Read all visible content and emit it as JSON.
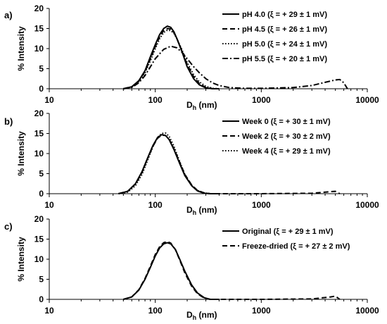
{
  "chart_data": [
    {
      "type": "line",
      "panel_label": "a)",
      "ylabel": "% Intensity",
      "xlabel_main": "D",
      "xlabel_sub": "h",
      "xlabel_unit": " (nm)",
      "x_scale": "log",
      "xlim": [
        10,
        10000
      ],
      "ylim": [
        0,
        20
      ],
      "xticks": [
        10,
        100,
        1000,
        10000
      ],
      "xtick_labels": [
        "10",
        "100",
        "1000",
        "10000"
      ],
      "yticks": [
        0,
        5,
        10,
        15,
        20
      ],
      "ytick_labels": [
        "0",
        "5",
        "10",
        "15",
        "20"
      ],
      "grid": false,
      "legend_position": "top-right",
      "series": [
        {
          "name": "pH 4.0 (ξ = + 29 ± 1 mV)",
          "dash": "solid",
          "x": [
            50,
            60,
            70,
            80,
            90,
            100,
            110,
            120,
            130,
            140,
            150,
            160,
            180,
            200,
            230,
            260,
            300,
            350,
            400
          ],
          "y": [
            0,
            0.5,
            2,
            4.5,
            8,
            11,
            13.5,
            15,
            15.6,
            15.3,
            14.2,
            12.5,
            9,
            5.5,
            2.5,
            1,
            0.2,
            0,
            0
          ]
        },
        {
          "name": "pH 4.5 (ξ = + 26 ± 1 mV)",
          "dash": "dash",
          "x": [
            50,
            60,
            70,
            80,
            90,
            100,
            110,
            120,
            130,
            140,
            150,
            160,
            180,
            200,
            230,
            260,
            300,
            350,
            400
          ],
          "y": [
            0,
            0.5,
            2,
            4.3,
            7.5,
            10.5,
            13,
            14.5,
            15,
            14.9,
            14,
            12.5,
            9.2,
            6,
            3,
            1.3,
            0.3,
            0,
            0
          ]
        },
        {
          "name": "pH 5.0 (ξ = + 24 ± 1 mV)",
          "dash": "dot",
          "x": [
            50,
            60,
            70,
            80,
            90,
            100,
            110,
            120,
            130,
            140,
            150,
            160,
            180,
            200,
            230,
            260,
            300,
            350,
            400
          ],
          "y": [
            0,
            0.4,
            1.8,
            4,
            7,
            10,
            12.5,
            14,
            14.6,
            14.5,
            13.8,
            12.5,
            9.5,
            6.5,
            3.5,
            1.7,
            0.6,
            0.1,
            0
          ]
        },
        {
          "name": "pH 5.5 (ξ = + 20 ± 1 mV)",
          "dash": "dashdot",
          "x": [
            50,
            60,
            70,
            80,
            90,
            100,
            120,
            140,
            160,
            180,
            200,
            230,
            260,
            300,
            350,
            400,
            500,
            700,
            1000,
            2000,
            3000,
            4000,
            5000,
            5500,
            6000,
            6500
          ],
          "y": [
            0,
            0.3,
            1.5,
            3.3,
            5.5,
            7.5,
            9.8,
            10.6,
            10.2,
            9,
            7.5,
            5.5,
            4,
            2.5,
            1.4,
            0.8,
            0.3,
            0.1,
            0.1,
            0.3,
            0.8,
            1.6,
            2.2,
            2.3,
            1.5,
            0
          ]
        }
      ]
    },
    {
      "type": "line",
      "panel_label": "b)",
      "ylabel": "% Intensity",
      "xlabel_main": "D",
      "xlabel_sub": "h",
      "xlabel_unit": " (nm)",
      "x_scale": "log",
      "xlim": [
        10,
        10000
      ],
      "ylim": [
        0,
        20
      ],
      "xticks": [
        10,
        100,
        1000,
        10000
      ],
      "xtick_labels": [
        "10",
        "100",
        "1000",
        "10000"
      ],
      "yticks": [
        0,
        5,
        10,
        15,
        20
      ],
      "ytick_labels": [
        "0",
        "5",
        "10",
        "15",
        "20"
      ],
      "grid": false,
      "legend_position": "top-right",
      "series": [
        {
          "name": "Week 0 (ξ = + 30 ± 1 mV)",
          "dash": "solid",
          "x": [
            45,
            55,
            65,
            75,
            85,
            95,
            105,
            115,
            125,
            135,
            150,
            170,
            190,
            220,
            250,
            290,
            330,
            400
          ],
          "y": [
            0,
            0.6,
            2.5,
            5.5,
            9,
            12,
            14,
            14.7,
            14.5,
            13.5,
            11,
            7.5,
            4.5,
            2,
            0.7,
            0.1,
            0,
            0
          ]
        },
        {
          "name": "Week 2 (ξ = + 30 ± 2 mV)",
          "dash": "dash",
          "x": [
            45,
            55,
            65,
            75,
            85,
            95,
            105,
            115,
            125,
            135,
            150,
            170,
            190,
            220,
            250,
            290,
            330,
            400,
            1000,
            3000,
            4500,
            5000,
            5500
          ],
          "y": [
            0,
            0.6,
            2.4,
            5.3,
            8.8,
            11.8,
            13.8,
            14.6,
            14.5,
            13.6,
            11.2,
            7.8,
            4.8,
            2.2,
            0.8,
            0.2,
            0,
            0,
            0,
            0.1,
            0.5,
            0.6,
            0
          ]
        },
        {
          "name": "Week 4 (ξ = + 29 ± 1 mV)",
          "dash": "dot",
          "x": [
            45,
            55,
            65,
            75,
            85,
            95,
            105,
            115,
            125,
            135,
            150,
            170,
            190,
            220,
            250,
            290,
            330,
            400
          ],
          "y": [
            0,
            0.4,
            2,
            4.8,
            8.4,
            11.7,
            14,
            15,
            15.1,
            14.3,
            11.8,
            8,
            4.8,
            2.1,
            0.8,
            0.2,
            0,
            0
          ]
        }
      ]
    },
    {
      "type": "line",
      "panel_label": "c)",
      "ylabel": "% Intensity",
      "xlabel_main": "D",
      "xlabel_sub": "h",
      "xlabel_unit": " (nm)",
      "x_scale": "log",
      "xlim": [
        10,
        10000
      ],
      "ylim": [
        0,
        20
      ],
      "xticks": [
        10,
        100,
        1000,
        10000
      ],
      "xtick_labels": [
        "10",
        "100",
        "1000",
        "10000"
      ],
      "yticks": [
        0,
        5,
        10,
        15,
        20
      ],
      "ytick_labels": [
        "0",
        "5",
        "10",
        "15",
        "20"
      ],
      "grid": false,
      "legend_position": "top-right",
      "series": [
        {
          "name": "Original (ξ = + 29 ± 1 mV)",
          "dash": "solid",
          "x": [
            50,
            60,
            70,
            80,
            90,
            100,
            110,
            120,
            130,
            140,
            155,
            170,
            190,
            220,
            250,
            290,
            330,
            400
          ],
          "y": [
            0,
            0.6,
            2.3,
            5,
            8,
            10.8,
            12.8,
            13.8,
            14.1,
            13.8,
            12.4,
            10,
            7,
            3.6,
            1.6,
            0.4,
            0,
            0
          ]
        },
        {
          "name": "Freeze-dried (ξ = + 27 ± 2 mV)",
          "dash": "dash",
          "x": [
            50,
            60,
            70,
            80,
            90,
            100,
            110,
            120,
            130,
            140,
            155,
            170,
            190,
            220,
            250,
            290,
            330,
            400,
            1000,
            3000,
            4500,
            5000,
            5500
          ],
          "y": [
            0,
            0.6,
            2.4,
            5.2,
            8.3,
            11.2,
            13.1,
            14.1,
            14.4,
            14,
            12.4,
            9.8,
            6.6,
            3.3,
            1.4,
            0.3,
            0,
            0,
            0,
            0.1,
            0.6,
            0.8,
            0
          ]
        }
      ]
    }
  ]
}
